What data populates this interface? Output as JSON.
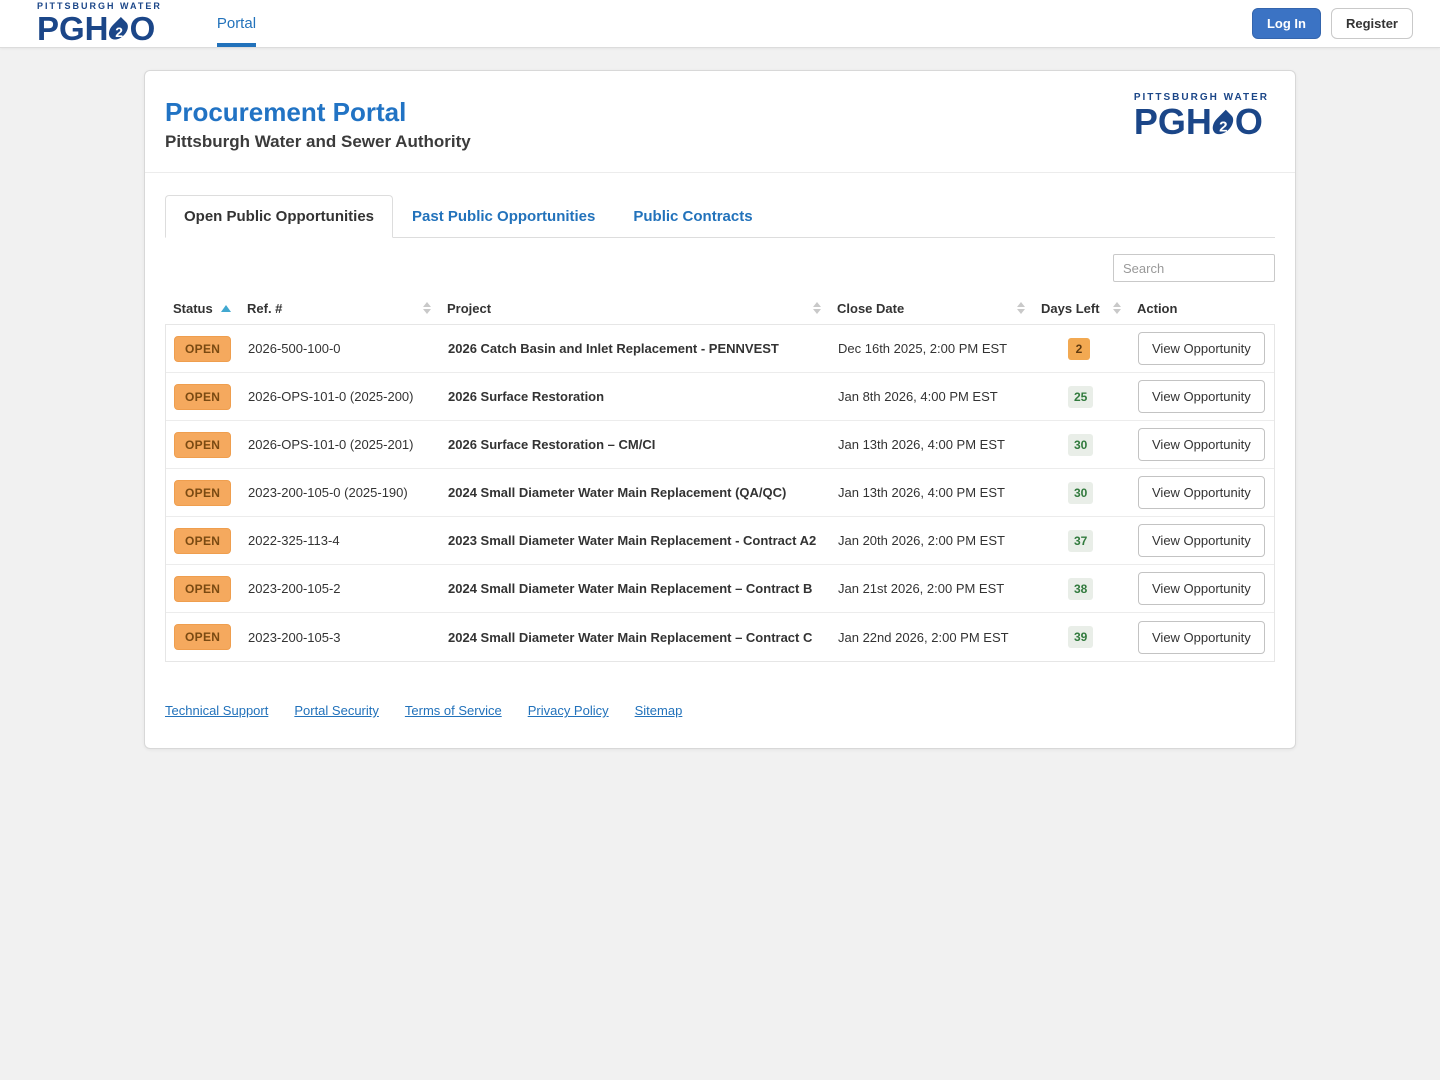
{
  "brand": {
    "line1": "PITTSBURGH WATER",
    "pgh": "PGH",
    "two": "2",
    "o": "O"
  },
  "navbar": {
    "portal_label": "Portal",
    "login_label": "Log In",
    "register_label": "Register"
  },
  "header": {
    "title": "Procurement Portal",
    "subtitle": "Pittsburgh Water and Sewer Authority"
  },
  "tabs": [
    {
      "label": "Open Public Opportunities",
      "active": true
    },
    {
      "label": "Past Public Opportunities",
      "active": false
    },
    {
      "label": "Public Contracts",
      "active": false
    }
  ],
  "search": {
    "placeholder": "Search"
  },
  "table": {
    "columns": [
      {
        "label": "Status",
        "sortable": true,
        "sorted": "asc"
      },
      {
        "label": "Ref. #",
        "sortable": true,
        "sorted": null
      },
      {
        "label": "Project",
        "sortable": true,
        "sorted": null
      },
      {
        "label": "Close Date",
        "sortable": true,
        "sorted": null
      },
      {
        "label": "Days Left",
        "sortable": true,
        "sorted": null
      },
      {
        "label": "Action",
        "sortable": false,
        "sorted": null
      }
    ],
    "action_label": "View Opportunity",
    "rows": [
      {
        "status": "OPEN",
        "ref": "2026-500-100-0",
        "project": "2026 Catch Basin and Inlet Replacement - PENNVEST",
        "close_date": "Dec 16th 2025, 2:00 PM EST",
        "days_left": "2",
        "days_level": "warning"
      },
      {
        "status": "OPEN",
        "ref": "2026-OPS-101-0 (2025-200)",
        "project": "2026 Surface Restoration",
        "close_date": "Jan 8th 2026, 4:00 PM EST",
        "days_left": "25",
        "days_level": "ok"
      },
      {
        "status": "OPEN",
        "ref": "2026-OPS-101-0 (2025-201)",
        "project": "2026 Surface Restoration – CM/CI",
        "close_date": "Jan 13th 2026, 4:00 PM EST",
        "days_left": "30",
        "days_level": "ok"
      },
      {
        "status": "OPEN",
        "ref": "2023-200-105-0 (2025-190)",
        "project": "2024 Small Diameter Water Main Replacement (QA/QC)",
        "close_date": "Jan 13th 2026, 4:00 PM EST",
        "days_left": "30",
        "days_level": "ok"
      },
      {
        "status": "OPEN",
        "ref": "2022-325-113-4",
        "project": "2023 Small Diameter Water Main Replacement - Contract A2",
        "close_date": "Jan 20th 2026, 2:00 PM EST",
        "days_left": "37",
        "days_level": "ok"
      },
      {
        "status": "OPEN",
        "ref": "2023-200-105-2",
        "project": "2024 Small Diameter Water Main Replacement – Contract B",
        "close_date": "Jan 21st 2026, 2:00 PM EST",
        "days_left": "38",
        "days_level": "ok"
      },
      {
        "status": "OPEN",
        "ref": "2023-200-105-3",
        "project": "2024 Small Diameter Water Main Replacement – Contract C",
        "close_date": "Jan 22nd 2026, 2:00 PM EST",
        "days_left": "39",
        "days_level": "ok"
      }
    ]
  },
  "footer": {
    "links": [
      "Technical Support",
      "Portal Security",
      "Terms of Service",
      "Privacy Policy",
      "Sitemap"
    ]
  },
  "icons": {
    "sort_active": "sort-ascending-icon",
    "sort_inactive": "sort-toggle-icon",
    "brand_droplet": "water-droplet-icon"
  },
  "colors": {
    "accent_blue": "#2272bb",
    "brand_navy": "#1b4688",
    "login_button": "#3b73c4",
    "open_badge_bg": "#f5a95e",
    "open_badge_text": "#7a4a12",
    "days_ok_bg": "#e9eee8",
    "days_ok_text": "#317a3d",
    "days_warning_bg": "#f2a952",
    "days_warning_text": "#5f3a10",
    "sort_active_arrow": "#41a8d0"
  }
}
